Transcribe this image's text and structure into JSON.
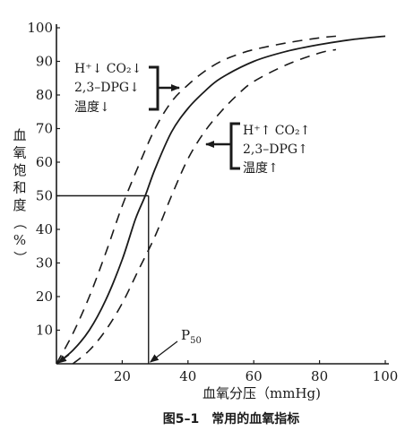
{
  "chart_data": {
    "type": "line",
    "caption": "图5–1　常用的血氧指标",
    "xlabel": "血氧分压（mmHg)",
    "ylabel_chars": [
      "血",
      "氧",
      "饱",
      "和",
      "度",
      "（",
      "%",
      "）"
    ],
    "xlim": [
      0,
      100
    ],
    "ylim": [
      0,
      100
    ],
    "x_ticks": [
      20,
      40,
      60,
      80,
      100
    ],
    "y_ticks": [
      10,
      20,
      30,
      40,
      50,
      60,
      70,
      80,
      90,
      100
    ],
    "series": [
      {
        "style": "solid",
        "x": [
          0,
          5,
          10,
          15,
          20,
          24,
          27,
          30,
          35,
          40,
          45,
          50,
          60,
          70,
          80,
          90,
          100
        ],
        "y": [
          0,
          4,
          10,
          19,
          31,
          43,
          50,
          58,
          69,
          76,
          81,
          85,
          90,
          93,
          95,
          96.5,
          97.5
        ]
      },
      {
        "style": "dashed",
        "x": [
          0,
          5,
          10,
          15,
          20,
          25,
          30,
          35,
          40,
          45,
          50,
          55,
          60,
          70,
          80,
          85
        ],
        "y": [
          0,
          9,
          20,
          33,
          47,
          59,
          70,
          78,
          83,
          87,
          90,
          92,
          93.5,
          95.5,
          97,
          97.5
        ]
      },
      {
        "style": "dashed",
        "x": [
          5,
          10,
          15,
          20,
          25,
          30,
          35,
          40,
          45,
          50,
          55,
          60,
          70,
          80,
          85
        ],
        "y": [
          0,
          4,
          10,
          18,
          28,
          38,
          50,
          61,
          69,
          75,
          80,
          84,
          89,
          92.5,
          93.5
        ]
      }
    ],
    "p50": {
      "x": 28,
      "y": 50,
      "label": "P",
      "label_sub": "50"
    },
    "annotations": {
      "left_shift": {
        "lines": [
          "H⁺↓ CO₂↓",
          "2,3–DPG↓",
          "温度↓"
        ]
      },
      "right_shift": {
        "lines": [
          "H⁺↑ CO₂↑",
          "2,3–DPG↑",
          "温度↑"
        ]
      }
    }
  }
}
